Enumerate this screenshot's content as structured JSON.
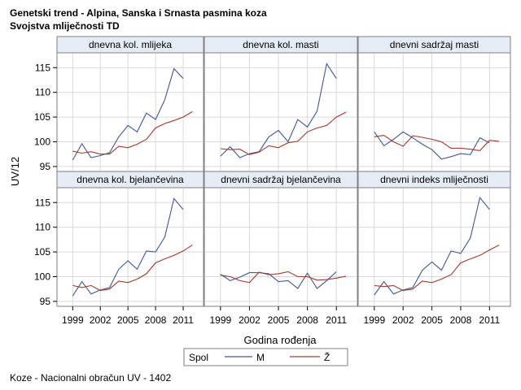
{
  "header": {
    "title": "Genetski trend - Alpina, Sanska i Srnasta pasmina koza",
    "subtitle": "Svojstva mliječnosti TD"
  },
  "footnote": "Koze - Nacionalni obračun UV - 1402",
  "colors": {
    "M": "#445694",
    "Z": "#A23A2E",
    "panel_header_bg": "#E6ECF5",
    "grid": "#D9D9D9",
    "frame": "#7F7F7F"
  },
  "chart_data": {
    "type": "line",
    "layout": "2x3 panel grid",
    "ylabel": "UV/12",
    "xlabel": "Godina rođenja",
    "legend": {
      "title": "Spol",
      "entries": [
        "M",
        "Ž"
      ],
      "placement": "bottom-center"
    },
    "xlim": [
      1998,
      2012.5
    ],
    "ylim": [
      94,
      118
    ],
    "xticks": [
      1999,
      2002,
      2005,
      2008,
      2011
    ],
    "yticks": [
      95,
      100,
      105,
      110,
      115
    ],
    "grid": true,
    "x": [
      1999,
      2000,
      2001,
      2002,
      2003,
      2004,
      2005,
      2006,
      2007,
      2008,
      2009,
      2010,
      2011,
      2012
    ],
    "panels": [
      {
        "title": "dnevna kol. mlijeka",
        "series": [
          {
            "name": "M",
            "values": [
              96.3,
              99.6,
              96.8,
              97.2,
              97.8,
              101.0,
              103.3,
              102.0,
              105.8,
              104.5,
              108.5,
              114.8,
              112.8,
              null
            ]
          },
          {
            "name": "Ž",
            "values": [
              98.1,
              97.7,
              98.0,
              97.5,
              97.5,
              99.1,
              98.8,
              99.5,
              100.5,
              102.8,
              103.7,
              104.3,
              105.0,
              106.1
            ]
          }
        ]
      },
      {
        "title": "dnevna kol. masti",
        "series": [
          {
            "name": "M",
            "values": [
              97.1,
              99.0,
              96.8,
              97.6,
              98.0,
              101.0,
              102.3,
              100.0,
              104.5,
              103.0,
              106.2,
              115.8,
              112.8,
              null
            ]
          },
          {
            "name": "Ž",
            "values": [
              98.6,
              98.4,
              98.5,
              97.4,
              97.9,
              99.2,
              98.8,
              99.8,
              100.1,
              102.0,
              102.8,
              103.3,
              105.0,
              106.0
            ]
          }
        ]
      },
      {
        "title": "dnevni sadržaj masti",
        "series": [
          {
            "name": "M",
            "values": [
              102.0,
              99.2,
              100.5,
              102.0,
              100.8,
              99.5,
              98.4,
              96.5,
              97.0,
              97.6,
              97.4,
              100.8,
              99.8,
              null
            ]
          },
          {
            "name": "Ž",
            "values": [
              101.0,
              101.3,
              100.0,
              99.1,
              101.2,
              100.9,
              100.5,
              100.0,
              98.7,
              98.7,
              98.5,
              98.2,
              100.3,
              100.1
            ]
          }
        ]
      },
      {
        "title": "dnevna kol. bjelančevina",
        "series": [
          {
            "name": "M",
            "values": [
              96.1,
              99.0,
              96.5,
              97.3,
              97.8,
              101.5,
              103.2,
              101.5,
              105.2,
              105.0,
              108.0,
              115.8,
              113.6,
              null
            ]
          },
          {
            "name": "Ž",
            "values": [
              98.2,
              97.8,
              98.2,
              97.2,
              97.5,
              99.1,
              98.8,
              99.5,
              100.6,
              102.8,
              103.6,
              104.3,
              105.2,
              106.4
            ]
          }
        ]
      },
      {
        "title": "dnevni sadržaj bjelančevina",
        "series": [
          {
            "name": "M",
            "values": [
              100.5,
              99.2,
              99.9,
              100.8,
              100.8,
              100.6,
              99.0,
              99.2,
              97.6,
              100.7,
              97.6,
              99.2,
              101.0,
              null
            ]
          },
          {
            "name": "Ž",
            "values": [
              100.3,
              100.0,
              99.2,
              98.8,
              100.9,
              100.4,
              100.6,
              101.0,
              100.0,
              100.0,
              99.3,
              99.4,
              99.7,
              100.1
            ]
          }
        ]
      },
      {
        "title": "dnevni indeks mliječnosti",
        "series": [
          {
            "name": "M",
            "values": [
              96.3,
              99.0,
              96.5,
              97.3,
              97.8,
              101.3,
              103.0,
              101.3,
              105.2,
              104.7,
              107.8,
              116.0,
              113.6,
              null
            ]
          },
          {
            "name": "Ž",
            "values": [
              98.2,
              98.0,
              98.2,
              97.2,
              97.5,
              99.1,
              98.8,
              99.5,
              100.4,
              102.8,
              103.6,
              104.3,
              105.4,
              106.4
            ]
          }
        ]
      }
    ]
  }
}
